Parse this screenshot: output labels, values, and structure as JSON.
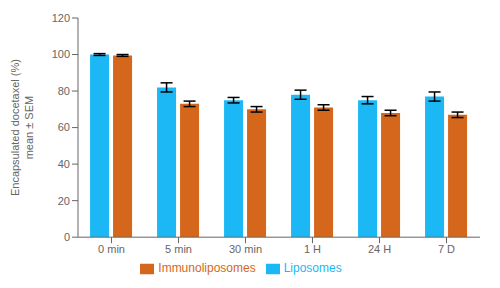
{
  "chart_data": {
    "type": "bar",
    "categories": [
      "0 min",
      "5 min",
      "30 min",
      "1 H",
      "24 H",
      "7 D"
    ],
    "series": [
      {
        "name": "Liposomes",
        "color": "#1BB8F5",
        "values": [
          100,
          82,
          75,
          78,
          75,
          77
        ],
        "errors": [
          0.5,
          2.5,
          1.5,
          2.5,
          2.0,
          2.5
        ]
      },
      {
        "name": "Immunoliposomes",
        "color": "#D4671C",
        "values": [
          99.5,
          73,
          70,
          71,
          68,
          67
        ],
        "errors": [
          0.5,
          1.5,
          1.5,
          1.5,
          1.5,
          1.5
        ]
      }
    ],
    "ylabel": "Encapsulated docetaxel (%)\nmean ± SEM",
    "ylim": [
      0,
      120
    ],
    "yticks": [
      0,
      20,
      40,
      60,
      80,
      100,
      120
    ],
    "grid": false,
    "legend": "bottom"
  }
}
